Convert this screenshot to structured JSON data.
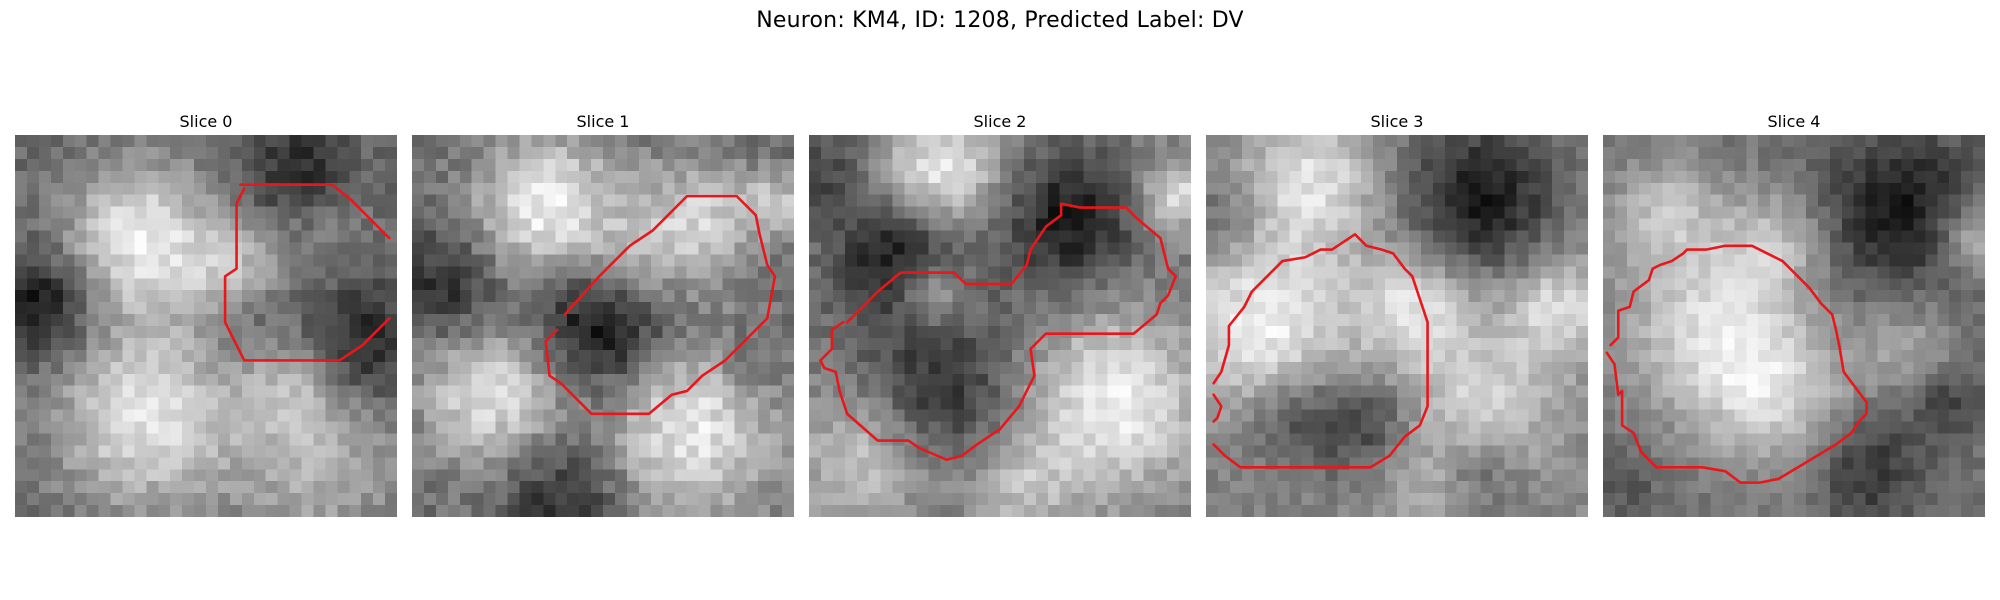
{
  "figure": {
    "title": "Neuron: KM4, ID: 1208, Predicted Label: DV"
  },
  "grid_size": 32,
  "contour_color": "#e8171b",
  "panels": [
    {
      "title": "Slice 0",
      "seed": 11,
      "blobs": [
        [
          0.33,
          0.27,
          0.14,
          1.0
        ],
        [
          0.58,
          0.36,
          0.09,
          0.6
        ],
        [
          0.34,
          0.74,
          0.17,
          0.95
        ],
        [
          0.8,
          0.86,
          0.16,
          0.55
        ],
        [
          0.72,
          0.64,
          0.1,
          0.45
        ],
        [
          0.82,
          0.22,
          0.08,
          0.25
        ]
      ],
      "dark": [
        [
          0.07,
          0.45,
          0.1,
          0.7
        ],
        [
          0.9,
          0.55,
          0.1,
          0.6
        ],
        [
          0.74,
          0.1,
          0.09,
          0.5
        ],
        [
          0.62,
          0.48,
          0.08,
          0.3
        ]
      ],
      "contours": [
        [
          [
            0.59,
            0.13
          ],
          [
            0.83,
            0.13
          ],
          [
            0.88,
            0.17
          ],
          [
            0.98,
            0.27
          ]
        ],
        [
          [
            0.98,
            0.48
          ],
          [
            0.91,
            0.55
          ],
          [
            0.85,
            0.59
          ],
          [
            0.6,
            0.59
          ],
          [
            0.55,
            0.49
          ],
          [
            0.55,
            0.37
          ],
          [
            0.58,
            0.35
          ],
          [
            0.58,
            0.18
          ],
          [
            0.6,
            0.14
          ]
        ]
      ]
    },
    {
      "title": "Slice 1",
      "seed": 23,
      "blobs": [
        [
          0.36,
          0.2,
          0.14,
          0.95
        ],
        [
          0.75,
          0.22,
          0.11,
          0.7
        ],
        [
          0.22,
          0.68,
          0.14,
          0.85
        ],
        [
          0.72,
          0.75,
          0.18,
          0.9
        ],
        [
          0.58,
          0.35,
          0.09,
          0.45
        ],
        [
          0.96,
          0.18,
          0.06,
          0.6
        ]
      ],
      "dark": [
        [
          0.5,
          0.5,
          0.14,
          0.85
        ],
        [
          0.1,
          0.4,
          0.1,
          0.5
        ],
        [
          0.4,
          0.92,
          0.12,
          0.5
        ],
        [
          0.88,
          0.6,
          0.08,
          0.3
        ]
      ],
      "contours": [
        [
          [
            0.4,
            0.47
          ],
          [
            0.49,
            0.37
          ],
          [
            0.57,
            0.29
          ],
          [
            0.63,
            0.25
          ],
          [
            0.66,
            0.22
          ],
          [
            0.72,
            0.16
          ],
          [
            0.85,
            0.16
          ],
          [
            0.9,
            0.21
          ],
          [
            0.91,
            0.26
          ],
          [
            0.93,
            0.34
          ],
          [
            0.95,
            0.37
          ],
          [
            0.93,
            0.48
          ],
          [
            0.89,
            0.52
          ],
          [
            0.82,
            0.59
          ],
          [
            0.76,
            0.63
          ],
          [
            0.72,
            0.67
          ],
          [
            0.68,
            0.68
          ],
          [
            0.62,
            0.73
          ],
          [
            0.47,
            0.73
          ],
          [
            0.39,
            0.65
          ],
          [
            0.36,
            0.63
          ],
          [
            0.35,
            0.54
          ],
          [
            0.38,
            0.51
          ]
        ]
      ]
    },
    {
      "title": "Slice 2",
      "seed": 37,
      "blobs": [
        [
          0.35,
          0.1,
          0.11,
          0.95
        ],
        [
          0.96,
          0.16,
          0.07,
          0.8
        ],
        [
          0.8,
          0.7,
          0.16,
          0.95
        ],
        [
          0.32,
          0.42,
          0.07,
          0.75
        ],
        [
          0.14,
          0.85,
          0.12,
          0.6
        ],
        [
          0.55,
          0.92,
          0.1,
          0.5
        ]
      ],
      "dark": [
        [
          0.24,
          0.33,
          0.12,
          0.85
        ],
        [
          0.68,
          0.22,
          0.13,
          0.8
        ],
        [
          0.35,
          0.66,
          0.14,
          0.6
        ],
        [
          0.05,
          0.1,
          0.08,
          0.4
        ]
      ],
      "contours": [
        [
          [
            0.1,
            0.49
          ],
          [
            0.18,
            0.41
          ],
          [
            0.24,
            0.36
          ],
          [
            0.38,
            0.36
          ],
          [
            0.41,
            0.39
          ],
          [
            0.53,
            0.39
          ],
          [
            0.57,
            0.34
          ],
          [
            0.58,
            0.3
          ],
          [
            0.62,
            0.24
          ],
          [
            0.66,
            0.21
          ],
          [
            0.66,
            0.18
          ],
          [
            0.71,
            0.19
          ],
          [
            0.83,
            0.19
          ],
          [
            0.86,
            0.22
          ],
          [
            0.92,
            0.27
          ],
          [
            0.94,
            0.35
          ],
          [
            0.96,
            0.37
          ],
          [
            0.94,
            0.42
          ],
          [
            0.92,
            0.44
          ],
          [
            0.91,
            0.47
          ],
          [
            0.85,
            0.52
          ],
          [
            0.62,
            0.52
          ],
          [
            0.58,
            0.56
          ],
          [
            0.59,
            0.63
          ],
          [
            0.55,
            0.71
          ],
          [
            0.5,
            0.77
          ],
          [
            0.44,
            0.81
          ],
          [
            0.4,
            0.84
          ],
          [
            0.36,
            0.85
          ],
          [
            0.29,
            0.82
          ],
          [
            0.26,
            0.8
          ],
          [
            0.18,
            0.8
          ],
          [
            0.1,
            0.73
          ],
          [
            0.08,
            0.67
          ],
          [
            0.07,
            0.62
          ],
          [
            0.04,
            0.61
          ],
          [
            0.03,
            0.59
          ],
          [
            0.06,
            0.56
          ],
          [
            0.06,
            0.51
          ],
          [
            0.09,
            0.49
          ]
        ]
      ]
    },
    {
      "title": "Slice 3",
      "seed": 53,
      "blobs": [
        [
          0.15,
          0.5,
          0.16,
          0.95
        ],
        [
          0.55,
          0.45,
          0.11,
          0.85
        ],
        [
          0.28,
          0.12,
          0.13,
          0.8
        ],
        [
          0.72,
          0.72,
          0.14,
          0.7
        ],
        [
          0.92,
          0.45,
          0.1,
          0.8
        ],
        [
          0.6,
          0.92,
          0.11,
          0.5
        ]
      ],
      "dark": [
        [
          0.72,
          0.17,
          0.15,
          0.9
        ],
        [
          0.22,
          0.74,
          0.09,
          0.5
        ],
        [
          0.42,
          0.76,
          0.1,
          0.6
        ],
        [
          0.7,
          0.88,
          0.09,
          0.7
        ],
        [
          0.05,
          0.22,
          0.07,
          0.4
        ]
      ],
      "contours": [
        [
          [
            0.02,
            0.65
          ],
          [
            0.04,
            0.62
          ],
          [
            0.06,
            0.55
          ],
          [
            0.06,
            0.5
          ],
          [
            0.1,
            0.45
          ],
          [
            0.12,
            0.41
          ],
          [
            0.15,
            0.38
          ],
          [
            0.2,
            0.33
          ],
          [
            0.26,
            0.32
          ],
          [
            0.3,
            0.3
          ],
          [
            0.33,
            0.3
          ],
          [
            0.36,
            0.28
          ],
          [
            0.39,
            0.26
          ],
          [
            0.42,
            0.29
          ],
          [
            0.46,
            0.3
          ],
          [
            0.49,
            0.31
          ],
          [
            0.52,
            0.35
          ],
          [
            0.54,
            0.37
          ],
          [
            0.56,
            0.43
          ],
          [
            0.58,
            0.49
          ],
          [
            0.58,
            0.71
          ],
          [
            0.56,
            0.76
          ],
          [
            0.52,
            0.79
          ],
          [
            0.48,
            0.84
          ],
          [
            0.43,
            0.87
          ],
          [
            0.09,
            0.87
          ],
          [
            0.05,
            0.84
          ],
          [
            0.02,
            0.81
          ]
        ],
        [
          [
            0.02,
            0.68
          ],
          [
            0.04,
            0.71
          ],
          [
            0.03,
            0.74
          ],
          [
            0.02,
            0.75
          ]
        ]
      ]
    },
    {
      "title": "Slice 4",
      "seed": 71,
      "blobs": [
        [
          0.28,
          0.5,
          0.17,
          0.95
        ],
        [
          0.45,
          0.68,
          0.13,
          0.8
        ],
        [
          0.16,
          0.2,
          0.1,
          0.65
        ],
        [
          0.97,
          0.27,
          0.07,
          0.8
        ],
        [
          0.8,
          0.55,
          0.09,
          0.5
        ],
        [
          0.45,
          0.28,
          0.1,
          0.6
        ]
      ],
      "dark": [
        [
          0.78,
          0.2,
          0.15,
          0.85
        ],
        [
          0.7,
          0.88,
          0.1,
          0.6
        ],
        [
          0.9,
          0.7,
          0.07,
          0.5
        ],
        [
          0.06,
          0.92,
          0.06,
          0.3
        ]
      ],
      "contours": [
        [
          [
            0.02,
            0.55
          ],
          [
            0.04,
            0.53
          ],
          [
            0.04,
            0.46
          ],
          [
            0.07,
            0.45
          ],
          [
            0.08,
            0.41
          ],
          [
            0.12,
            0.38
          ],
          [
            0.13,
            0.35
          ],
          [
            0.15,
            0.34
          ],
          [
            0.18,
            0.33
          ],
          [
            0.21,
            0.31
          ],
          [
            0.22,
            0.3
          ],
          [
            0.27,
            0.3
          ],
          [
            0.32,
            0.29
          ],
          [
            0.36,
            0.29
          ],
          [
            0.39,
            0.29
          ],
          [
            0.43,
            0.31
          ],
          [
            0.47,
            0.33
          ],
          [
            0.51,
            0.37
          ],
          [
            0.54,
            0.4
          ],
          [
            0.57,
            0.44
          ],
          [
            0.6,
            0.47
          ],
          [
            0.61,
            0.51
          ],
          [
            0.62,
            0.56
          ],
          [
            0.63,
            0.62
          ],
          [
            0.66,
            0.66
          ],
          [
            0.69,
            0.7
          ],
          [
            0.69,
            0.73
          ],
          [
            0.67,
            0.75
          ],
          [
            0.65,
            0.78
          ],
          [
            0.61,
            0.81
          ],
          [
            0.56,
            0.84
          ],
          [
            0.51,
            0.87
          ],
          [
            0.46,
            0.9
          ],
          [
            0.41,
            0.91
          ],
          [
            0.36,
            0.91
          ],
          [
            0.32,
            0.88
          ],
          [
            0.26,
            0.87
          ],
          [
            0.21,
            0.87
          ],
          [
            0.14,
            0.87
          ],
          [
            0.1,
            0.83
          ],
          [
            0.08,
            0.78
          ],
          [
            0.05,
            0.76
          ],
          [
            0.05,
            0.67
          ],
          [
            0.04,
            0.68
          ],
          [
            0.03,
            0.6
          ],
          [
            0.01,
            0.57
          ]
        ]
      ]
    }
  ]
}
